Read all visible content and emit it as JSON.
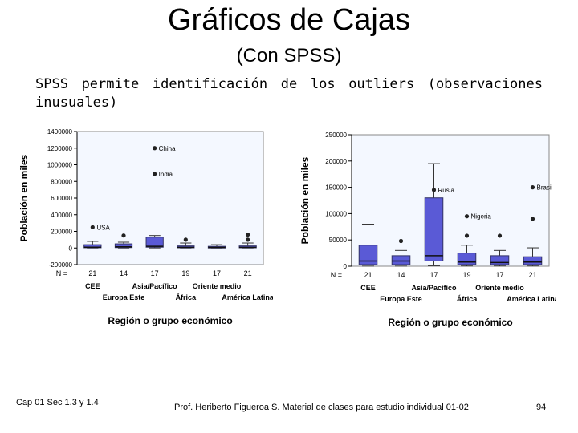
{
  "slide": {
    "title": "Gráficos de Cajas",
    "subtitle": "(Con SPSS)",
    "intro": "SPSS permite identificación de los outliers (observaciones inusuales)"
  },
  "footer": {
    "left": "Cap 01 Sec 1.3 y 1.4",
    "center": "Prof. Heriberto Figueroa S. Material de clases para estudio individual 01-02",
    "page": "94"
  },
  "colors": {
    "box": "#5a5ad6",
    "box_edge": "#333366",
    "chart_bg": "#f4f8ff",
    "axis": "#000000"
  },
  "chart_data": [
    {
      "type": "box",
      "ylabel": "Población en miles",
      "xlabel": "Región o grupo económico",
      "n_label": "N =",
      "ylim": [
        -200000,
        1400000
      ],
      "yticks": [
        -200000,
        0,
        200000,
        400000,
        600000,
        800000,
        1000000,
        1200000,
        1400000
      ],
      "ytick_labels": [
        "-200000",
        "0",
        "200000",
        "400000",
        "600000",
        "800000",
        "1000000",
        "1200000",
        "1400000"
      ],
      "categories_top": [
        "CEE",
        "Asia/Pacífico",
        "Oriente medio"
      ],
      "categories_bottom": [
        "Europa Este",
        "África",
        "América Latina"
      ],
      "n": [
        "21",
        "14",
        "17",
        "19",
        "17",
        "21"
      ],
      "boxes": [
        {
          "whisker_low": 300,
          "q1": 3000,
          "median": 10000,
          "q3": 40000,
          "whisker_high": 80000
        },
        {
          "whisker_low": 300,
          "q1": 5000,
          "median": 15000,
          "q3": 50000,
          "whisker_high": 70000
        },
        {
          "whisker_low": 1000,
          "q1": 10000,
          "median": 20000,
          "q3": 130000,
          "whisker_high": 150000
        },
        {
          "whisker_low": 500,
          "q1": 3000,
          "median": 8000,
          "q3": 25000,
          "whisker_high": 60000
        },
        {
          "whisker_low": 500,
          "q1": 3000,
          "median": 7000,
          "q3": 20000,
          "whisker_high": 40000
        },
        {
          "whisker_low": 500,
          "q1": 3000,
          "median": 8000,
          "q3": 25000,
          "whisker_high": 60000
        }
      ],
      "outliers": [
        {
          "group": 3,
          "value": 1200000,
          "label": "China"
        },
        {
          "group": 3,
          "value": 890000,
          "label": "India"
        },
        {
          "group": 1,
          "value": 250000,
          "label": "USA"
        },
        {
          "group": 2,
          "value": 150000,
          "label": ""
        },
        {
          "group": 4,
          "value": 100000,
          "label": ""
        },
        {
          "group": 6,
          "value": 160000,
          "label": ""
        },
        {
          "group": 6,
          "value": 100000,
          "label": ""
        }
      ]
    },
    {
      "type": "box",
      "ylabel": "Población en miles",
      "xlabel": "Región o grupo económico",
      "n_label": "N =",
      "ylim": [
        0,
        250000
      ],
      "yticks": [
        0,
        50000,
        100000,
        150000,
        200000,
        250000
      ],
      "ytick_labels": [
        "0",
        "50000",
        "100000",
        "150000",
        "200000",
        "250000"
      ],
      "categories_top": [
        "CEE",
        "Asia/Pacífico",
        "Oriente medio"
      ],
      "categories_bottom": [
        "Europa Este",
        "África",
        "América Latina"
      ],
      "n": [
        "21",
        "14",
        "17",
        "19",
        "17",
        "21"
      ],
      "boxes": [
        {
          "whisker_low": 300,
          "q1": 3000,
          "median": 10000,
          "q3": 40000,
          "whisker_high": 80000
        },
        {
          "whisker_low": 300,
          "q1": 3000,
          "median": 10000,
          "q3": 20000,
          "whisker_high": 30000
        },
        {
          "whisker_low": 1000,
          "q1": 10000,
          "median": 20000,
          "q3": 130000,
          "whisker_high": 195000
        },
        {
          "whisker_low": 500,
          "q1": 3000,
          "median": 8000,
          "q3": 25000,
          "whisker_high": 40000
        },
        {
          "whisker_low": 500,
          "q1": 3000,
          "median": 7000,
          "q3": 20000,
          "whisker_high": 30000
        },
        {
          "whisker_low": 500,
          "q1": 3000,
          "median": 8000,
          "q3": 18000,
          "whisker_high": 35000
        }
      ],
      "outliers": [
        {
          "group": 3,
          "value": 145000,
          "label": "Rusia"
        },
        {
          "group": 6,
          "value": 150000,
          "label": "Brasil"
        },
        {
          "group": 4,
          "value": 95000,
          "label": "Nigeria"
        },
        {
          "group": 2,
          "value": 48000,
          "label": ""
        },
        {
          "group": 4,
          "value": 58000,
          "label": ""
        },
        {
          "group": 5,
          "value": 58000,
          "label": ""
        },
        {
          "group": 6,
          "value": 90000,
          "label": ""
        }
      ]
    }
  ]
}
